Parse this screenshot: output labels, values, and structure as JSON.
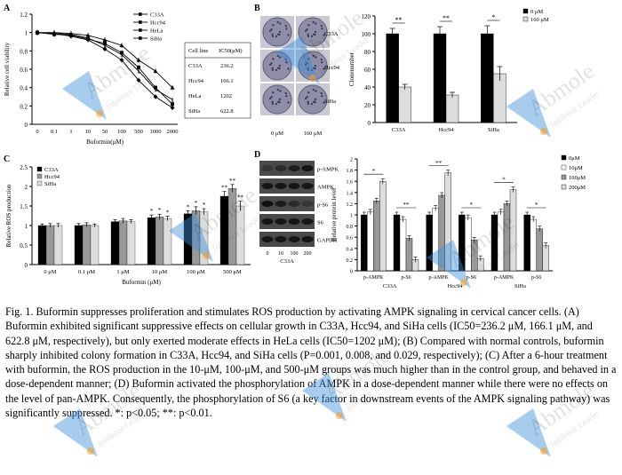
{
  "figure": {
    "panels": {
      "a": "A",
      "b": "B",
      "c": "C",
      "d": "D"
    },
    "caption": "Fig. 1. Buformin suppresses proliferation and stimulates ROS production by activating AMPK signaling in cervical cancer cells. (A) Buformin exhibited significant suppressive effects on cellular growth in C33A, Hcc94, and SiHa cells (IC50=236.2 μM, 166.1 μM, and 622.8 μM, respectively), but only exerted moderate effects in HeLa cells (IC50=1202 μM); (B) Compared with normal controls, buformin sharply inhibited colony formation in C33A, Hcc94, and SiHa cells (P=0.001, 0.008, and 0.029, respectively); (C) After a 6-hour treatment with buformin, the ROS production in the 10-μM, 100-μM, and 500-μM groups was much higher than in the control group, and behaved in a dose-dependent manner; (D) Buformin activated the phosphorylation of AMPK in a dose-dependent manner while there were no effects on the level of pan-AMPK. Consequently, the phosphorylation of S6 (a key factor in downstream events of the AMPK signaling pathway) was significantly suppressed. *: p<0.05; **: p<0.01.",
    "watermark": {
      "brand": "Abmole",
      "tagline": "Inhibitor Leader"
    }
  },
  "colors": {
    "black": "#000000",
    "dark": "#555555",
    "gray": "#999999",
    "light": "#dddddd",
    "white": "#ffffff"
  },
  "chart_data": [
    {
      "id": "A",
      "type": "line",
      "ylabel": "Relative cell viability",
      "xlabel": "Buformin(μM)",
      "x": [
        "0",
        "0.1",
        "1",
        "10",
        "50",
        "100",
        "500",
        "1000",
        "2000"
      ],
      "yticks": [
        "0",
        "0.2",
        "0.4",
        "0.6",
        "0.8",
        "1",
        "1.2"
      ],
      "ylim": [
        0,
        1.2
      ],
      "series": [
        {
          "name": "C33A",
          "values": [
            1.0,
            0.98,
            0.97,
            0.93,
            0.88,
            0.78,
            0.62,
            0.4,
            0.22
          ]
        },
        {
          "name": "Hcc94",
          "values": [
            1.0,
            0.99,
            0.96,
            0.92,
            0.82,
            0.7,
            0.48,
            0.3,
            0.18
          ]
        },
        {
          "name": "HeLa",
          "values": [
            1.0,
            1.0,
            0.99,
            0.97,
            0.92,
            0.86,
            0.7,
            0.58,
            0.4
          ]
        },
        {
          "name": "SiHa",
          "values": [
            1.0,
            0.99,
            0.98,
            0.94,
            0.86,
            0.76,
            0.58,
            0.38,
            0.27
          ]
        }
      ],
      "legend_pos": "top-right",
      "table": {
        "headers": [
          "Cell line",
          "IC50(μM)"
        ],
        "rows": [
          [
            "C33A",
            "236.2"
          ],
          [
            "Hcc94",
            "166.1"
          ],
          [
            "HeLa",
            "1202"
          ],
          [
            "SiHa",
            "622.8"
          ]
        ]
      }
    },
    {
      "id": "B",
      "type": "bar",
      "ylabel": "Clonenumber",
      "categories": [
        "C33A",
        "Hcc94",
        "SiHa"
      ],
      "yticks": [
        "0",
        "20",
        "40",
        "60",
        "80",
        "100",
        "120"
      ],
      "ylim": [
        0,
        120
      ],
      "series": [
        {
          "name": "0 μM",
          "values": [
            100,
            100,
            100
          ],
          "errors": [
            6,
            8,
            9
          ]
        },
        {
          "name": "160 μM",
          "values": [
            40,
            31,
            55
          ],
          "errors": [
            3,
            3,
            8
          ]
        }
      ],
      "significance": [
        "**",
        "**",
        "*"
      ],
      "plate_labels": [
        "C33A",
        "Hcc94",
        "SiHa"
      ],
      "plate_axis": [
        "0 μM",
        "160 μM"
      ],
      "legend_pos": "top-right"
    },
    {
      "id": "C",
      "type": "bar",
      "ylabel": "Relative ROS production",
      "xlabel": "Buformin (μM)",
      "categories": [
        "0 μM",
        "0.1 μM",
        "1 μM",
        "10 μM",
        "100 μM",
        "500 μM"
      ],
      "yticks": [
        "0",
        "0.5",
        "1",
        "1.5",
        "2",
        "2.5"
      ],
      "ylim": [
        0,
        2.5
      ],
      "series": [
        {
          "name": "C33A",
          "values": [
            1.0,
            1.0,
            1.1,
            1.2,
            1.3,
            1.75
          ],
          "errors": [
            0.04,
            0.05,
            0.05,
            0.07,
            0.08,
            0.12
          ]
        },
        {
          "name": "Hcc94",
          "values": [
            1.0,
            1.02,
            1.12,
            1.22,
            1.38,
            1.95
          ],
          "errors": [
            0.05,
            0.05,
            0.06,
            0.07,
            0.1,
            0.1
          ]
        },
        {
          "name": "SiHa",
          "values": [
            1.0,
            1.0,
            1.1,
            1.18,
            1.35,
            1.5
          ],
          "errors": [
            0.05,
            0.04,
            0.05,
            0.06,
            0.08,
            0.12
          ]
        }
      ],
      "significance": [
        "",
        "",
        "",
        "*",
        "*",
        "**"
      ],
      "legend_pos": "top-left"
    },
    {
      "id": "D",
      "type": "bar",
      "ylabel": "Relative protein level",
      "yticks": [
        "0",
        "0.2",
        "0.4",
        "0.6",
        "0.8",
        "1",
        "1.2",
        "1.4",
        "1.6",
        "1.8",
        "2"
      ],
      "ylim": [
        0,
        2
      ],
      "groups": [
        "C33A",
        "Hcc94",
        "SiHa"
      ],
      "categories": [
        "p-AMPK",
        "p-S6",
        "p-AMPK",
        "p-S6",
        "p-AMPK",
        "p-S6"
      ],
      "series": [
        {
          "name": "0μM",
          "values": [
            1.0,
            1.0,
            1.0,
            1.0,
            1.0,
            1.0
          ]
        },
        {
          "name": "10μM",
          "values": [
            1.05,
            0.92,
            1.12,
            0.95,
            1.05,
            0.92
          ]
        },
        {
          "name": "100μM",
          "values": [
            1.25,
            0.58,
            1.35,
            0.55,
            1.2,
            0.75
          ]
        },
        {
          "name": "200μM",
          "values": [
            1.6,
            0.2,
            1.75,
            0.22,
            1.45,
            0.45
          ]
        }
      ],
      "significance": [
        "*",
        "**",
        "**",
        "*",
        "*",
        "*"
      ],
      "blot_labels": [
        "p-AMPK",
        "AMPK",
        "p-S6",
        "S6",
        "GAPDH"
      ],
      "blot_lanes": [
        "0",
        "10",
        "100",
        "200"
      ],
      "blot_cell": "C33A",
      "legend_pos": "top-right"
    }
  ]
}
